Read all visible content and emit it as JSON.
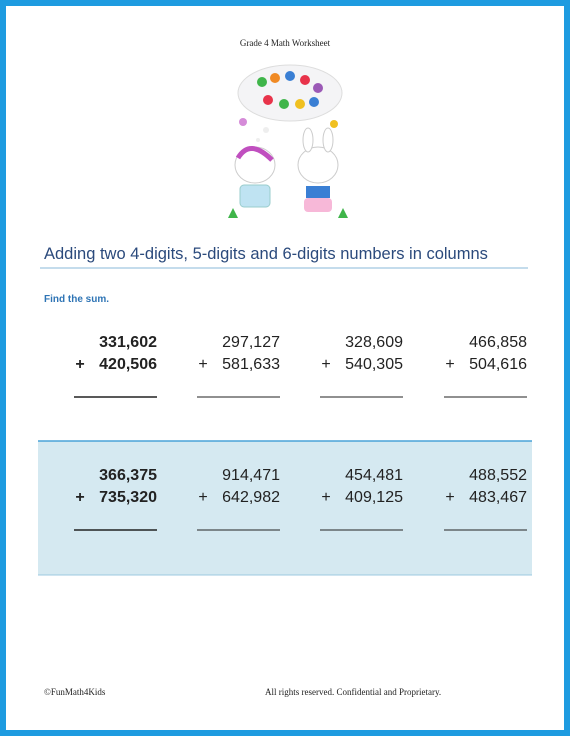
{
  "header": {
    "title": "Grade 4 Math Worksheet"
  },
  "title": "Adding two 4-digits, 5-digits and 6-digits numbers in columns",
  "instruction": "Find the sum.",
  "problems": [
    [
      {
        "top": "331,602",
        "operator": "+",
        "bottom": "420,506"
      },
      {
        "top": "297,127",
        "operator": "+",
        "bottom": "581,633"
      },
      {
        "top": "328,609",
        "operator": "+",
        "bottom": "540,305"
      },
      {
        "top": "466,858",
        "operator": "+",
        "bottom": "504,616"
      }
    ],
    [
      {
        "top": "366,375",
        "operator": "+",
        "bottom": "735,320"
      },
      {
        "top": "914,471",
        "operator": "+",
        "bottom": "642,982"
      },
      {
        "top": "454,481",
        "operator": "+",
        "bottom": "409,125"
      },
      {
        "top": "488,552",
        "operator": "+",
        "bottom": "483,467"
      }
    ]
  ],
  "footer": {
    "left": "©FunMath4Kids",
    "right": "All rights reserved. Confidential and Proprietary."
  }
}
